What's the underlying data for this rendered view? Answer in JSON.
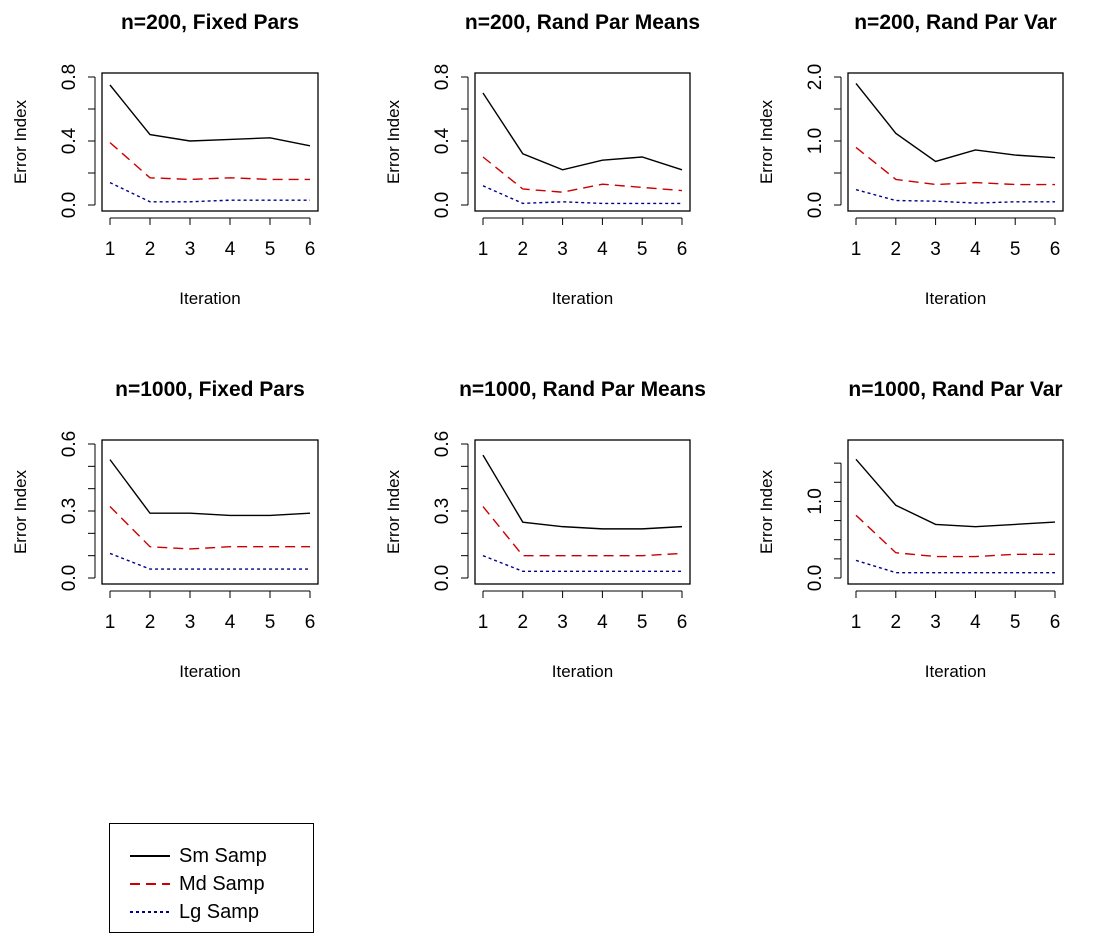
{
  "series_styles": [
    {
      "color": "#000000",
      "dash": "none"
    },
    {
      "color": "#cc0000",
      "dash": "10 6"
    },
    {
      "color": "#00008b",
      "dash": "3 3"
    }
  ],
  "legend": {
    "items": [
      {
        "label": "Sm Samp",
        "color": "#000000",
        "dash": "none"
      },
      {
        "label": "Md Samp",
        "color": "#cc0000",
        "dash": "10 6"
      },
      {
        "label": "Lg Samp",
        "color": "#00008b",
        "dash": "3 3"
      }
    ]
  },
  "chart_data": [
    {
      "type": "line",
      "title": "n=200, Fixed Pars",
      "xlabel": "Iteration",
      "ylabel": "Error Index",
      "x": [
        1,
        2,
        3,
        4,
        5,
        6
      ],
      "xticks": [
        1,
        2,
        3,
        4,
        5,
        6
      ],
      "ylim": [
        0,
        0.8
      ],
      "yticks": [
        0,
        0.2,
        0.4,
        0.6,
        0.8
      ],
      "ytick_labels": [
        "0.0",
        "",
        "0.4",
        "",
        "0.8"
      ],
      "series": [
        {
          "name": "Sm Samp",
          "values": [
            0.75,
            0.44,
            0.4,
            0.41,
            0.42,
            0.37
          ]
        },
        {
          "name": "Md Samp",
          "values": [
            0.39,
            0.17,
            0.16,
            0.17,
            0.16,
            0.16
          ]
        },
        {
          "name": "Lg Samp",
          "values": [
            0.14,
            0.02,
            0.02,
            0.03,
            0.03,
            0.03
          ]
        }
      ]
    },
    {
      "type": "line",
      "title": "n=200, Rand Par Means",
      "xlabel": "Iteration",
      "ylabel": "Error Index",
      "x": [
        1,
        2,
        3,
        4,
        5,
        6
      ],
      "xticks": [
        1,
        2,
        3,
        4,
        5,
        6
      ],
      "ylim": [
        0,
        0.8
      ],
      "yticks": [
        0,
        0.2,
        0.4,
        0.6,
        0.8
      ],
      "ytick_labels": [
        "0.0",
        "",
        "0.4",
        "",
        "0.8"
      ],
      "series": [
        {
          "name": "Sm Samp",
          "values": [
            0.7,
            0.32,
            0.22,
            0.28,
            0.3,
            0.22
          ]
        },
        {
          "name": "Md Samp",
          "values": [
            0.3,
            0.1,
            0.08,
            0.13,
            0.11,
            0.09
          ]
        },
        {
          "name": "Lg Samp",
          "values": [
            0.12,
            0.01,
            0.02,
            0.01,
            0.01,
            0.01
          ]
        }
      ]
    },
    {
      "type": "line",
      "title": "n=200, Rand Par Var",
      "xlabel": "Iteration",
      "ylabel": "Error Index",
      "x": [
        1,
        2,
        3,
        4,
        5,
        6
      ],
      "xticks": [
        1,
        2,
        3,
        4,
        5,
        6
      ],
      "ylim": [
        0,
        2.0
      ],
      "yticks": [
        0,
        0.5,
        1.0,
        1.5,
        2.0
      ],
      "ytick_labels": [
        "0.0",
        "",
        "1.0",
        "",
        "2.0"
      ],
      "series": [
        {
          "name": "Sm Samp",
          "values": [
            1.9,
            1.12,
            0.68,
            0.86,
            0.78,
            0.74
          ]
        },
        {
          "name": "Md Samp",
          "values": [
            0.9,
            0.4,
            0.32,
            0.35,
            0.32,
            0.32
          ]
        },
        {
          "name": "Lg Samp",
          "values": [
            0.24,
            0.07,
            0.06,
            0.03,
            0.05,
            0.05
          ]
        }
      ]
    },
    {
      "type": "line",
      "title": "n=1000, Fixed Pars",
      "xlabel": "Iteration",
      "ylabel": "Error Index",
      "x": [
        1,
        2,
        3,
        4,
        5,
        6
      ],
      "xticks": [
        1,
        2,
        3,
        4,
        5,
        6
      ],
      "ylim": [
        0,
        0.6
      ],
      "yticks": [
        0,
        0.1,
        0.2,
        0.3,
        0.4,
        0.5,
        0.6
      ],
      "ytick_labels": [
        "0.0",
        "",
        "",
        "0.3",
        "",
        "",
        "0.6"
      ],
      "series": [
        {
          "name": "Sm Samp",
          "values": [
            0.53,
            0.29,
            0.29,
            0.28,
            0.28,
            0.29
          ]
        },
        {
          "name": "Md Samp",
          "values": [
            0.32,
            0.14,
            0.13,
            0.14,
            0.14,
            0.14
          ]
        },
        {
          "name": "Lg Samp",
          "values": [
            0.11,
            0.04,
            0.04,
            0.04,
            0.04,
            0.04
          ]
        }
      ]
    },
    {
      "type": "line",
      "title": "n=1000, Rand Par Means",
      "xlabel": "Iteration",
      "ylabel": "Error Index",
      "x": [
        1,
        2,
        3,
        4,
        5,
        6
      ],
      "xticks": [
        1,
        2,
        3,
        4,
        5,
        6
      ],
      "ylim": [
        0,
        0.6
      ],
      "yticks": [
        0,
        0.1,
        0.2,
        0.3,
        0.4,
        0.5,
        0.6
      ],
      "ytick_labels": [
        "0.0",
        "",
        "",
        "0.3",
        "",
        "",
        "0.6"
      ],
      "series": [
        {
          "name": "Sm Samp",
          "values": [
            0.55,
            0.25,
            0.23,
            0.22,
            0.22,
            0.23
          ]
        },
        {
          "name": "Md Samp",
          "values": [
            0.32,
            0.1,
            0.1,
            0.1,
            0.1,
            0.11
          ]
        },
        {
          "name": "Lg Samp",
          "values": [
            0.1,
            0.03,
            0.03,
            0.03,
            0.03,
            0.03
          ]
        }
      ]
    },
    {
      "type": "line",
      "title": "n=1000, Rand Par Var",
      "xlabel": "Iteration",
      "ylabel": "Error Index",
      "x": [
        1,
        2,
        3,
        4,
        5,
        6
      ],
      "xticks": [
        1,
        2,
        3,
        4,
        5,
        6
      ],
      "ylim": [
        0,
        1.75
      ],
      "yticks": [
        0,
        0.25,
        0.5,
        0.75,
        1.0,
        1.25,
        1.5
      ],
      "ytick_labels": [
        "0.0",
        "",
        "",
        "",
        "1.0",
        "",
        ""
      ],
      "series": [
        {
          "name": "Sm Samp",
          "values": [
            1.55,
            0.95,
            0.7,
            0.67,
            0.7,
            0.73
          ]
        },
        {
          "name": "Md Samp",
          "values": [
            0.82,
            0.33,
            0.28,
            0.28,
            0.31,
            0.31
          ]
        },
        {
          "name": "Lg Samp",
          "values": [
            0.23,
            0.07,
            0.07,
            0.07,
            0.07,
            0.07
          ]
        }
      ]
    }
  ]
}
